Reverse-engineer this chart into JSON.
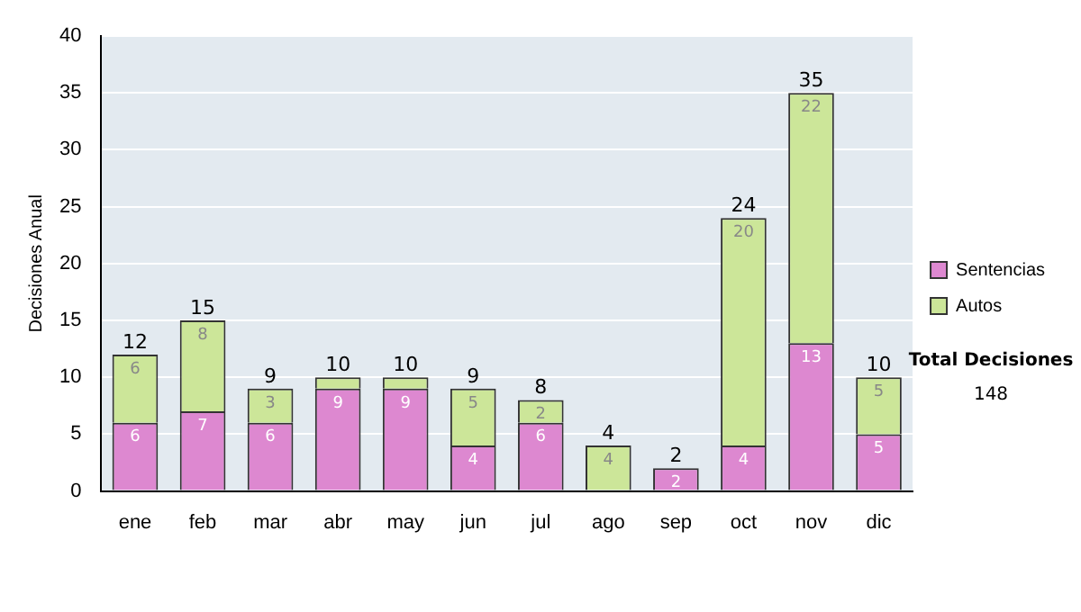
{
  "chart_data": {
    "type": "bar",
    "ylabel": "Decisiones Anual",
    "stacked": true,
    "categories": [
      "ene",
      "feb",
      "mar",
      "abr",
      "may",
      "jun",
      "jul",
      "ago",
      "sep",
      "oct",
      "nov",
      "dic"
    ],
    "series": [
      {
        "name": "Sentencias",
        "color": "#dd88d0",
        "values": [
          6,
          7,
          6,
          9,
          9,
          4,
          6,
          0,
          2,
          4,
          13,
          5
        ],
        "value_labels": [
          "6",
          "7",
          "6",
          "9",
          "9",
          "4",
          "6",
          null,
          "2",
          "4",
          "13",
          "5"
        ]
      },
      {
        "name": "Autos",
        "color": "#cce699",
        "values": [
          6,
          8,
          3,
          1,
          1,
          5,
          2,
          4,
          0,
          20,
          22,
          5
        ],
        "value_labels": [
          "6",
          "8",
          "3",
          null,
          null,
          "5",
          "2",
          "4",
          null,
          "20",
          "22",
          "5"
        ]
      }
    ],
    "totals": [
      "12",
      "15",
      "9",
      "10",
      "10",
      "9",
      "8",
      "4",
      "2",
      "24",
      "35",
      "10"
    ],
    "ylim": [
      0,
      40
    ],
    "yticks": [
      0,
      5,
      10,
      15,
      20,
      25,
      30,
      35,
      40
    ],
    "grid": "y",
    "legend": "right",
    "annotations": [
      "Total Decisiones",
      "148"
    ]
  }
}
